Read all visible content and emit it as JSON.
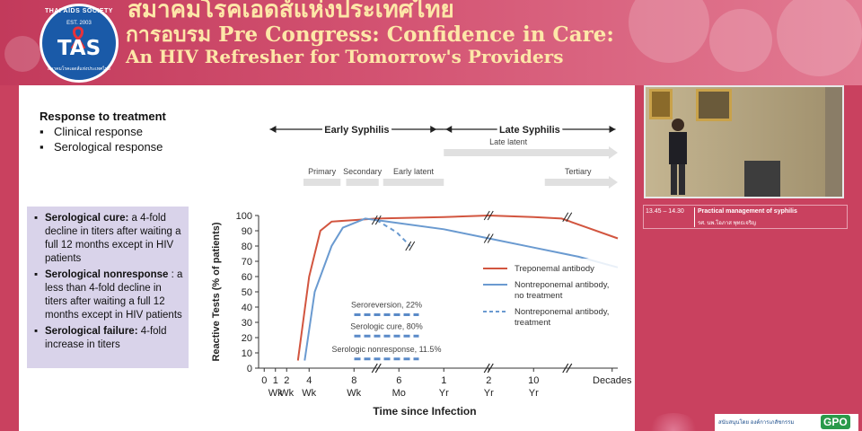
{
  "header": {
    "logo": {
      "ring_text": "THAI AIDS SOCIETY",
      "est": "EST. 2003",
      "mark": "TAS",
      "bottom_text": "สมาคมโรคเอดส์แห่งประเทศไทย"
    },
    "title_thai": "สมาคมโรคเอดส์แห่งประเทศไทย",
    "title_line1": "การอบรม Pre Congress: Confidence in Care:",
    "title_line2": "An HIV Refresher for Tomorrow's Providers"
  },
  "slide": {
    "response": {
      "title": "Response to treatment",
      "items": [
        "Clinical response",
        "Serological response"
      ],
      "bullet": "▪"
    },
    "definitions": [
      {
        "term": "Serological cure:",
        "text": " a 4-fold decline in titers after waiting a full 12 months except in HIV patients"
      },
      {
        "term": "Serological nonresponse",
        "text": " : a less than  4-fold decline in titers after waiting a full 12 months except in HIV patients"
      },
      {
        "term": "Serological failure:",
        "text": " 4-fold increase in titers"
      }
    ]
  },
  "chart_data": {
    "type": "line",
    "ylabel": "Reactive Tests (% of patients)",
    "xlabel": "Time since Infection",
    "ylim": [
      0,
      100
    ],
    "y_ticks": [
      0,
      10,
      20,
      30,
      40,
      50,
      60,
      70,
      80,
      90,
      100
    ],
    "x_ticks": [
      {
        "n": "0",
        "u": "",
        "pos": 0
      },
      {
        "n": "1",
        "u": "Wk",
        "pos": 1
      },
      {
        "n": "2",
        "u": "Wk",
        "pos": 2
      },
      {
        "n": "4",
        "u": "Wk",
        "pos": 4
      },
      {
        "n": "8",
        "u": "Wk",
        "pos": 8
      },
      {
        "n": "6",
        "u": "Mo",
        "pos": 12
      },
      {
        "n": "1",
        "u": "Yr",
        "pos": 16
      },
      {
        "n": "2",
        "u": "Yr",
        "pos": 20
      },
      {
        "n": "10",
        "u": "Yr",
        "pos": 24
      },
      {
        "n": "Decades",
        "u": "",
        "pos": 31
      }
    ],
    "x_breaks": [
      10,
      20,
      27
    ],
    "stage_headers": {
      "early": "Early Syphilis",
      "late": "Late Syphilis"
    },
    "stages": [
      {
        "label": "Primary",
        "from": 3.5,
        "to": 6.8
      },
      {
        "label": "Secondary",
        "from": 7.3,
        "to": 10.2
      },
      {
        "label": "Early latent",
        "from": 10.6,
        "to": 16.0
      },
      {
        "label": "Late latent",
        "from": 16.0,
        "to": 31.5
      },
      {
        "label": "Tertiary",
        "from": 25.0,
        "to": 31.5
      }
    ],
    "series": [
      {
        "name": "Treponemal antibody",
        "color": "#d2553f",
        "style": "solid",
        "points": [
          [
            3,
            5
          ],
          [
            4,
            60
          ],
          [
            5,
            90
          ],
          [
            6,
            96
          ],
          [
            8,
            97
          ],
          [
            10,
            98
          ],
          [
            16,
            99
          ],
          [
            20,
            100
          ],
          [
            24,
            99
          ],
          [
            26.5,
            98
          ],
          [
            31.5,
            85
          ]
        ]
      },
      {
        "name": "Nontreponemal antibody, no treatment",
        "color": "#6a9ad0",
        "style": "solid",
        "points": [
          [
            3.6,
            5
          ],
          [
            4.5,
            50
          ],
          [
            6,
            80
          ],
          [
            7,
            92
          ],
          [
            9,
            98
          ],
          [
            10,
            97
          ],
          [
            16,
            91
          ],
          [
            20,
            85
          ],
          [
            24,
            79
          ],
          [
            28,
            73
          ],
          [
            31.5,
            66
          ]
        ]
      },
      {
        "name": "Nontreponemal antibody, treatment",
        "color": "#6a9ad0",
        "style": "dashed",
        "points": [
          [
            10,
            97
          ],
          [
            11.8,
            89
          ],
          [
            13,
            80
          ]
        ]
      }
    ],
    "annotations": [
      {
        "label": "Seroreversion, 22%",
        "value": 22
      },
      {
        "label": "Serologic cure, 80%",
        "value": 80
      },
      {
        "label": "Serologic nonresponse, 11.5%",
        "value": 11.5
      }
    ]
  },
  "video": {
    "session_time": "13.45 – 14.30",
    "session_topic": "Practical management of syphilis",
    "speaker": "รศ. นพ.โอภาส พุทธเจริญ"
  },
  "sponsor": {
    "text": "สนับสนุนโดย องค์การเภสัชกรรม",
    "logo": "GPO"
  },
  "colors": {
    "brand_pink": "#c9415f",
    "banner_text": "#fde7a8",
    "definition_box": "#d9d3ea"
  }
}
